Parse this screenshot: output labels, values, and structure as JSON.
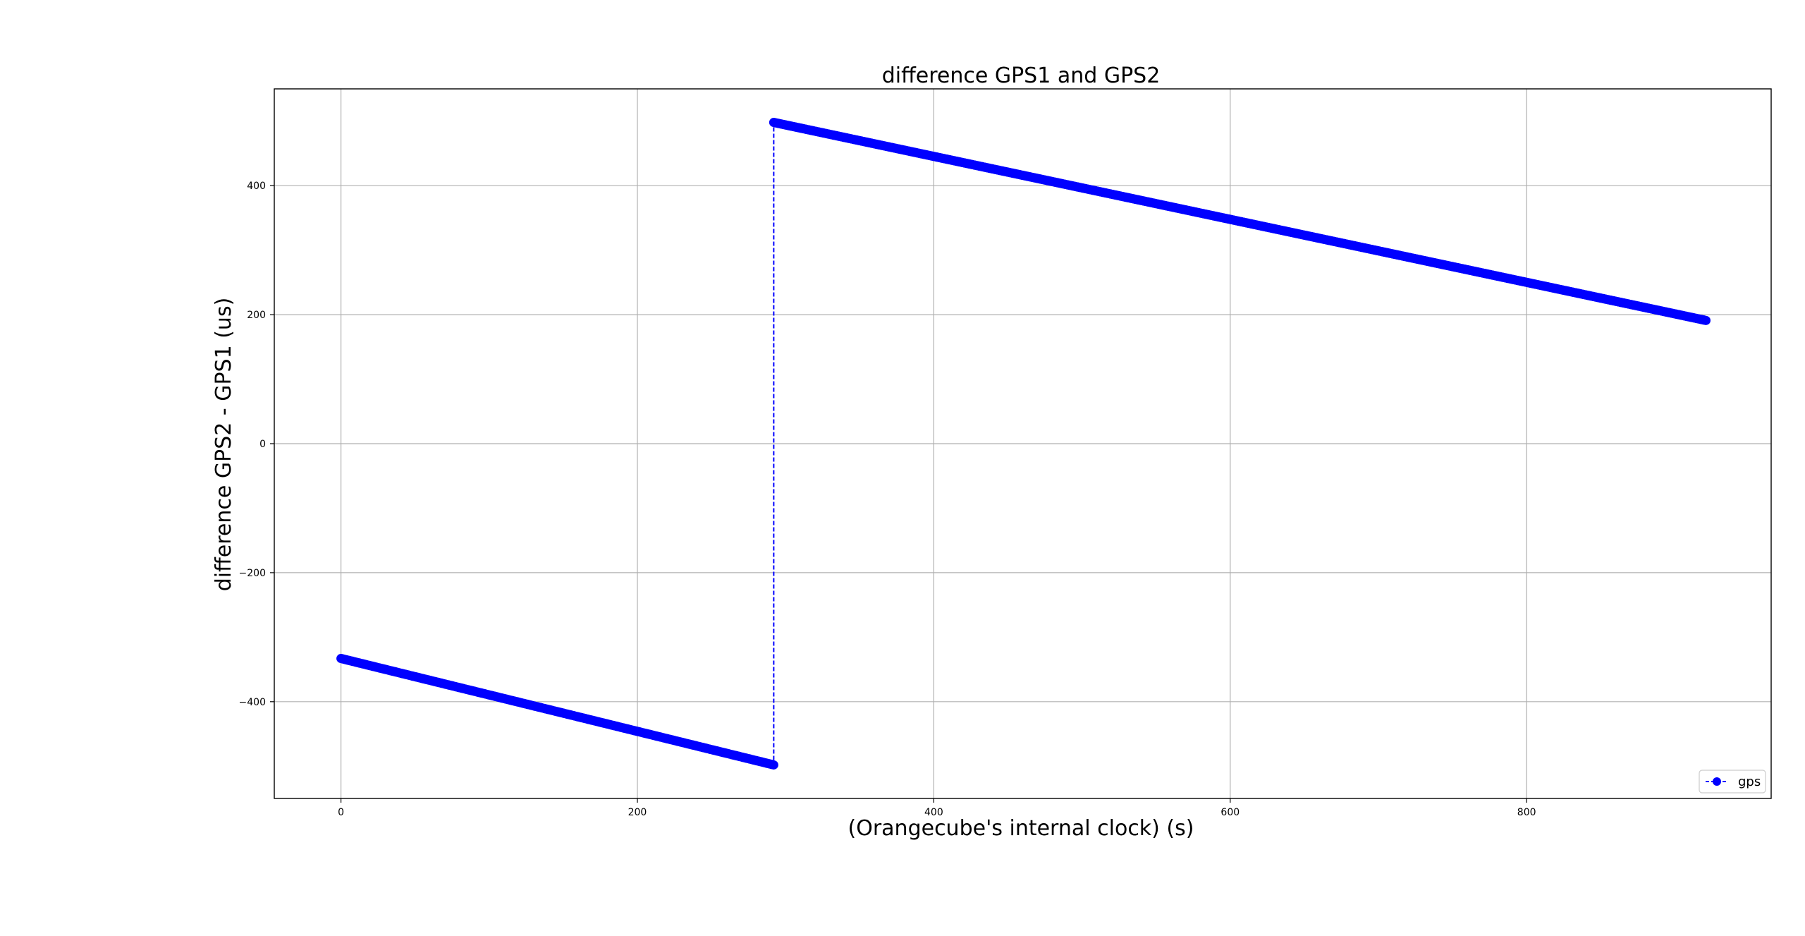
{
  "chart_data": {
    "type": "line",
    "title": "difference GPS1 and GPS2",
    "xlabel": "(Orangecube's internal clock) (s)",
    "ylabel": "difference GPS2 - GPS1 (us)",
    "xlim": [
      -45,
      965
    ],
    "ylim": [
      -550,
      550
    ],
    "x_ticks": [
      0,
      200,
      400,
      600,
      800
    ],
    "x_tick_labels": [
      "0",
      "200",
      "400",
      "600",
      "800"
    ],
    "y_ticks": [
      -400,
      -200,
      0,
      200,
      400
    ],
    "y_tick_labels": [
      "−400",
      "−200",
      "0",
      "200",
      "400"
    ],
    "grid": true,
    "legend_position": "bottom-right",
    "series": [
      {
        "name": "gps",
        "color": "#0000ff",
        "line_style": "dashed",
        "marker": "circle",
        "segments": [
          {
            "x_start": 0,
            "y_start": -333,
            "x_end": 292,
            "y_end": -498
          },
          {
            "x_start": 292,
            "y_start": 498,
            "x_end": 921,
            "y_end": 191
          }
        ]
      }
    ]
  }
}
